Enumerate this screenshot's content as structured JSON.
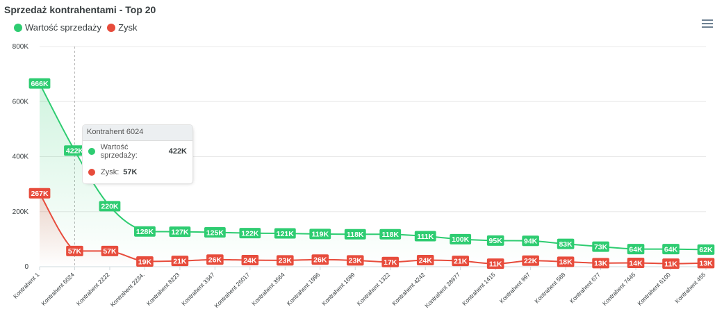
{
  "title": "Sprzedaż kontrahentami - Top 20",
  "legend": [
    {
      "label": "Wartość sprzedaży",
      "color": "#2ecc71"
    },
    {
      "label": "Zysk",
      "color": "#e74c3c"
    }
  ],
  "menu_icon": "hamburger-menu-icon",
  "tooltip": {
    "title": "Kontrahent 6024",
    "rows": [
      {
        "label": "Wartość sprzedaży:",
        "value": "422K",
        "color": "#2ecc71"
      },
      {
        "label": "Zysk:",
        "value": "57K",
        "color": "#e74c3c"
      }
    ]
  },
  "chart_data": {
    "type": "line",
    "title": "Sprzedaż kontrahentami - Top 20",
    "categories": [
      "Kontrahent 1",
      "Kontrahent 6024",
      "Kontrahent 2222",
      "Kontrahent 2234.",
      "Kontrahent 8223",
      "Kontrahent 3347",
      "Kontrahent 26017",
      "Kontrahent 3564",
      "Kontrahent 1996",
      "Kontrahent 1699",
      "Kontrahent 1322",
      "Kontrahent 4242",
      "Kontrahent 28977",
      "Kontrahent 1415",
      "Kontrahent 997",
      "Kontrahent 588",
      "Kontrahent 677",
      "Kontrahent 7445",
      "Kontrahent 6100",
      "Kontrahent 455"
    ],
    "series": [
      {
        "name": "Wartość sprzedaży",
        "color": "#2ecc71",
        "values": [
          666,
          422,
          220,
          128,
          127,
          125,
          122,
          121,
          119,
          118,
          118,
          111,
          100,
          95,
          94,
          83,
          73,
          64,
          64,
          62
        ],
        "labels": [
          "666K",
          "422K",
          "220K",
          "128K",
          "127K",
          "125K",
          "122K",
          "121K",
          "119K",
          "118K",
          "118K",
          "111K",
          "100K",
          "95K",
          "94K",
          "83K",
          "73K",
          "64K",
          "64K",
          "62K"
        ]
      },
      {
        "name": "Zysk",
        "color": "#e74c3c",
        "values": [
          267,
          57,
          57,
          19,
          21,
          26,
          24,
          23,
          26,
          23,
          17,
          24,
          21,
          11,
          22,
          18,
          13,
          14,
          11,
          13
        ],
        "labels": [
          "267K",
          "57K",
          "57K",
          "19K",
          "21K",
          "26K",
          "24K",
          "23K",
          "26K",
          "23K",
          "17K",
          "24K",
          "21K",
          "11K",
          "22K",
          "18K",
          "13K",
          "14K",
          "11K",
          "13K"
        ]
      }
    ],
    "y_ticks": [
      "800K",
      "600K",
      "400K",
      "200K",
      "0"
    ],
    "ylim": [
      0,
      800
    ],
    "grid": true,
    "legend": "top-left",
    "highlighted_category": "Kontrahent 6024"
  }
}
